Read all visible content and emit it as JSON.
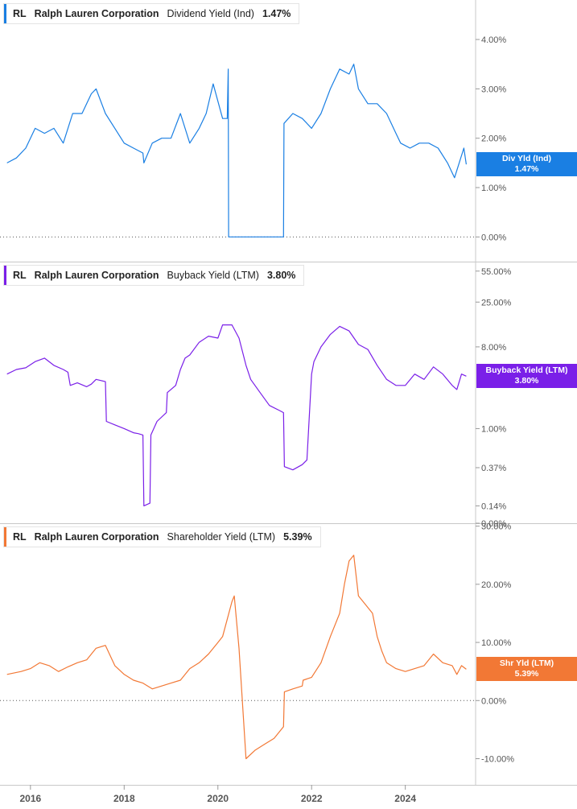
{
  "chart_data": [
    {
      "type": "line",
      "ticker": "RL",
      "company": "Ralph Lauren Corporation",
      "metric": "Dividend Yield (Ind)",
      "current_value": "1.47%",
      "tag_label": "Div Yld (Ind)",
      "color": "#1a7fe3",
      "y_scale": "linear",
      "ylim": [
        -0.005,
        0.048
      ],
      "y_ticks": [
        {
          "value": 0.04,
          "label": "4.00%"
        },
        {
          "value": 0.03,
          "label": "3.00%"
        },
        {
          "value": 0.02,
          "label": "2.00%"
        },
        {
          "value": 0.01,
          "label": "1.00%"
        },
        {
          "value": 0.0,
          "label": "0.00%"
        }
      ],
      "reference_line": 0.0,
      "x": [
        2015.5,
        2015.7,
        2015.9,
        2016.1,
        2016.3,
        2016.5,
        2016.7,
        2016.9,
        2017.1,
        2017.3,
        2017.4,
        2017.6,
        2017.8,
        2018.0,
        2018.2,
        2018.4,
        2018.42,
        2018.6,
        2018.8,
        2019.0,
        2019.2,
        2019.4,
        2019.6,
        2019.75,
        2019.9,
        2020.1,
        2020.2,
        2020.22,
        2020.23,
        2021.4,
        2021.41,
        2021.6,
        2021.8,
        2022.0,
        2022.2,
        2022.4,
        2022.6,
        2022.8,
        2022.9,
        2023.0,
        2023.2,
        2023.4,
        2023.6,
        2023.8,
        2023.9,
        2024.1,
        2024.3,
        2024.5,
        2024.7,
        2024.9,
        2025.05,
        2025.15,
        2025.25,
        2025.3
      ],
      "values": [
        0.015,
        0.016,
        0.018,
        0.022,
        0.021,
        0.022,
        0.019,
        0.025,
        0.025,
        0.029,
        0.03,
        0.025,
        0.022,
        0.019,
        0.018,
        0.017,
        0.015,
        0.019,
        0.02,
        0.02,
        0.025,
        0.019,
        0.022,
        0.025,
        0.031,
        0.024,
        0.024,
        0.034,
        0.0,
        0.0,
        0.023,
        0.025,
        0.024,
        0.022,
        0.025,
        0.03,
        0.034,
        0.033,
        0.035,
        0.03,
        0.027,
        0.027,
        0.025,
        0.021,
        0.019,
        0.018,
        0.019,
        0.019,
        0.018,
        0.015,
        0.012,
        0.015,
        0.018,
        0.0147
      ]
    },
    {
      "type": "line",
      "ticker": "RL",
      "company": "Ralph Lauren Corporation",
      "metric": "Buyback Yield (LTM)",
      "current_value": "3.80%",
      "tag_label": "Buyback Yield (LTM)",
      "color": "#7a1fe8",
      "y_scale": "log",
      "ylim": [
        0.0009,
        0.7
      ],
      "y_ticks": [
        {
          "value": 0.55,
          "label": "55.00%"
        },
        {
          "value": 0.25,
          "label": "25.00%"
        },
        {
          "value": 0.08,
          "label": "8.00%"
        },
        {
          "value": 0.01,
          "label": "1.00%"
        },
        {
          "value": 0.0037,
          "label": "0.37%"
        },
        {
          "value": 0.0014,
          "label": "0.14%"
        },
        {
          "value": 0.0009,
          "label": "0.09%"
        }
      ],
      "x": [
        2015.5,
        2015.7,
        2015.9,
        2016.1,
        2016.3,
        2016.5,
        2016.7,
        2016.8,
        2016.85,
        2017.0,
        2017.2,
        2017.3,
        2017.4,
        2017.5,
        2017.6,
        2017.62,
        2017.8,
        2018.0,
        2018.2,
        2018.3,
        2018.4,
        2018.42,
        2018.55,
        2018.57,
        2018.7,
        2018.9,
        2018.92,
        2019.1,
        2019.2,
        2019.3,
        2019.4,
        2019.6,
        2019.8,
        2020.0,
        2020.1,
        2020.3,
        2020.45,
        2020.6,
        2020.7,
        2020.9,
        2021.1,
        2021.3,
        2021.4,
        2021.42,
        2021.6,
        2021.8,
        2021.9,
        2022.0,
        2022.05,
        2022.2,
        2022.4,
        2022.6,
        2022.8,
        2023.0,
        2023.2,
        2023.4,
        2023.6,
        2023.8,
        2024.0,
        2024.2,
        2024.4,
        2024.6,
        2024.8,
        2025.0,
        2025.1,
        2025.2,
        2025.3
      ],
      "values": [
        0.04,
        0.045,
        0.047,
        0.055,
        0.06,
        0.05,
        0.045,
        0.042,
        0.03,
        0.032,
        0.029,
        0.031,
        0.035,
        0.034,
        0.033,
        0.012,
        0.011,
        0.01,
        0.009,
        0.0088,
        0.0085,
        0.0014,
        0.0015,
        0.0085,
        0.012,
        0.015,
        0.025,
        0.03,
        0.045,
        0.06,
        0.065,
        0.09,
        0.105,
        0.1,
        0.14,
        0.14,
        0.1,
        0.05,
        0.035,
        0.025,
        0.018,
        0.016,
        0.015,
        0.0038,
        0.0035,
        0.004,
        0.0045,
        0.04,
        0.055,
        0.08,
        0.11,
        0.135,
        0.12,
        0.085,
        0.075,
        0.05,
        0.035,
        0.03,
        0.03,
        0.04,
        0.035,
        0.048,
        0.04,
        0.03,
        0.027,
        0.04,
        0.038
      ]
    },
    {
      "type": "line",
      "ticker": "RL",
      "company": "Ralph Lauren Corporation",
      "metric": "Shareholder Yield (LTM)",
      "current_value": "5.39%",
      "tag_label": "Shr Yld (LTM)",
      "color": "#f27835",
      "y_scale": "linear",
      "ylim": [
        -0.145,
        0.305
      ],
      "y_ticks": [
        {
          "value": 0.3,
          "label": "30.00%"
        },
        {
          "value": 0.2,
          "label": "20.00%"
        },
        {
          "value": 0.1,
          "label": "10.00%"
        },
        {
          "value": 0.0,
          "label": "0.00%"
        },
        {
          "value": -0.1,
          "label": "-10.00%"
        }
      ],
      "reference_line": 0.0,
      "x": [
        2015.5,
        2015.8,
        2016.0,
        2016.2,
        2016.4,
        2016.6,
        2016.8,
        2017.0,
        2017.2,
        2017.4,
        2017.6,
        2017.8,
        2018.0,
        2018.2,
        2018.4,
        2018.6,
        2018.8,
        2019.0,
        2019.2,
        2019.4,
        2019.6,
        2019.8,
        2020.0,
        2020.1,
        2020.2,
        2020.3,
        2020.35,
        2020.45,
        2020.6,
        2020.8,
        2021.0,
        2021.2,
        2021.4,
        2021.42,
        2021.6,
        2021.8,
        2021.82,
        2022.0,
        2022.2,
        2022.4,
        2022.6,
        2022.7,
        2022.8,
        2022.9,
        2023.0,
        2023.1,
        2023.3,
        2023.4,
        2023.5,
        2023.6,
        2023.8,
        2024.0,
        2024.2,
        2024.4,
        2024.6,
        2024.8,
        2025.0,
        2025.1,
        2025.2,
        2025.3
      ],
      "values": [
        0.045,
        0.05,
        0.055,
        0.065,
        0.06,
        0.05,
        0.058,
        0.065,
        0.07,
        0.09,
        0.095,
        0.06,
        0.045,
        0.035,
        0.03,
        0.02,
        0.025,
        0.03,
        0.035,
        0.055,
        0.065,
        0.08,
        0.1,
        0.11,
        0.14,
        0.17,
        0.18,
        0.09,
        -0.1,
        -0.085,
        -0.075,
        -0.065,
        -0.045,
        0.015,
        0.02,
        0.025,
        0.035,
        0.04,
        0.065,
        0.11,
        0.15,
        0.2,
        0.24,
        0.25,
        0.18,
        0.17,
        0.15,
        0.11,
        0.085,
        0.065,
        0.055,
        0.05,
        0.055,
        0.06,
        0.08,
        0.065,
        0.06,
        0.045,
        0.06,
        0.0539
      ]
    }
  ],
  "x_axis": {
    "xlim": [
      2015.35,
      2025.5
    ],
    "ticks": [
      {
        "value": 2016,
        "label": "2016"
      },
      {
        "value": 2018,
        "label": "2018"
      },
      {
        "value": 2020,
        "label": "2020"
      },
      {
        "value": 2022,
        "label": "2022"
      },
      {
        "value": 2024,
        "label": "2024"
      }
    ]
  }
}
